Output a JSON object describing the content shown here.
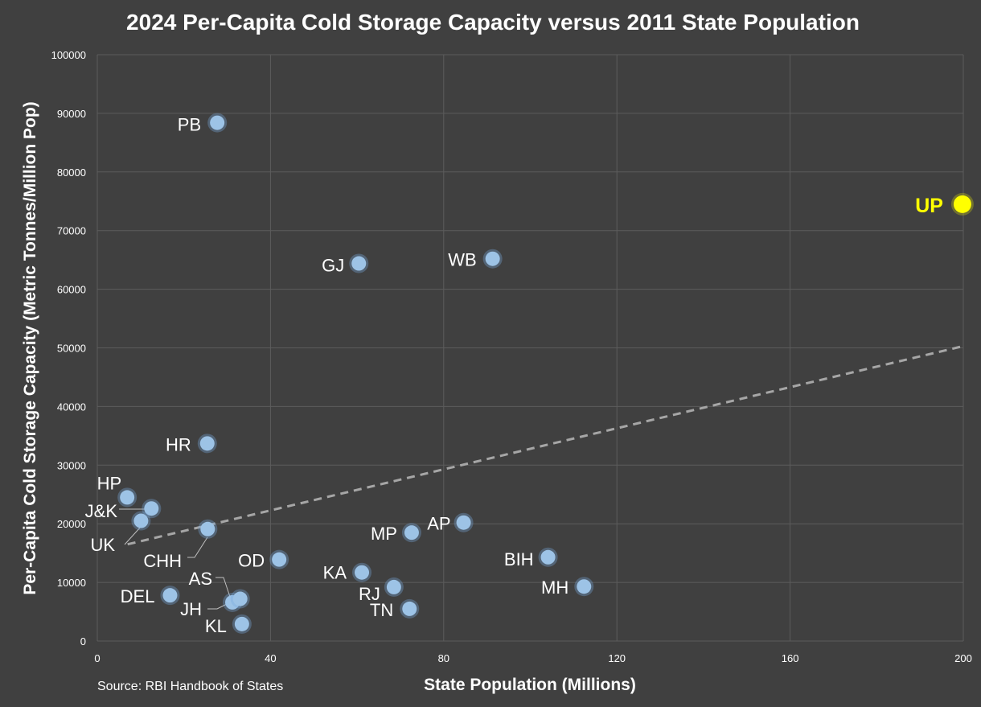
{
  "chart_data": {
    "type": "scatter",
    "title": "2024 Per-Capita Cold Storage Capacity versus 2011 State Population",
    "xlabel": "State Population (Millions)",
    "ylabel": "Per-Capita Cold Storage Capacity (Metric Tonnes/Million Pop)",
    "xlim": [
      0,
      200
    ],
    "ylim": [
      0,
      100000
    ],
    "xticks": [
      0,
      40,
      80,
      120,
      160,
      200
    ],
    "yticks": [
      0,
      10000,
      20000,
      30000,
      40000,
      50000,
      60000,
      70000,
      80000,
      90000,
      100000
    ],
    "grid": true,
    "source": "Source: RBI Handbook of States",
    "colors": {
      "background": "#404040",
      "point": "#9dc3e6",
      "highlight": "#ffff00",
      "trendline": "#a6a6a6"
    },
    "trendline": {
      "style": "dashed",
      "x": [
        7,
        200
      ],
      "y": [
        16500,
        50300
      ]
    },
    "points": [
      {
        "label": "PB",
        "x": 27.7,
        "y": 88400
      },
      {
        "label": "UP",
        "x": 199.8,
        "y": 74500,
        "highlight": true
      },
      {
        "label": "GJ",
        "x": 60.4,
        "y": 64400
      },
      {
        "label": "WB",
        "x": 91.3,
        "y": 65200
      },
      {
        "label": "HR",
        "x": 25.4,
        "y": 33700
      },
      {
        "label": "HP",
        "x": 6.9,
        "y": 24500
      },
      {
        "label": "J&K",
        "x": 12.5,
        "y": 22600
      },
      {
        "label": "UK",
        "x": 10.1,
        "y": 20500
      },
      {
        "label": "CHH",
        "x": 25.5,
        "y": 19100
      },
      {
        "label": "AP",
        "x": 84.6,
        "y": 20200
      },
      {
        "label": "MP",
        "x": 72.6,
        "y": 18500
      },
      {
        "label": "OD",
        "x": 42.0,
        "y": 13900
      },
      {
        "label": "BIH",
        "x": 104.1,
        "y": 14300
      },
      {
        "label": "KA",
        "x": 61.1,
        "y": 11700
      },
      {
        "label": "RJ",
        "x": 68.5,
        "y": 9200
      },
      {
        "label": "MH",
        "x": 112.4,
        "y": 9300
      },
      {
        "label": "DEL",
        "x": 16.8,
        "y": 7800
      },
      {
        "label": "AS",
        "x": 31.2,
        "y": 6600
      },
      {
        "label": "JH",
        "x": 33.0,
        "y": 7200
      },
      {
        "label": "TN",
        "x": 72.1,
        "y": 5500
      },
      {
        "label": "KL",
        "x": 33.4,
        "y": 2900
      }
    ]
  }
}
